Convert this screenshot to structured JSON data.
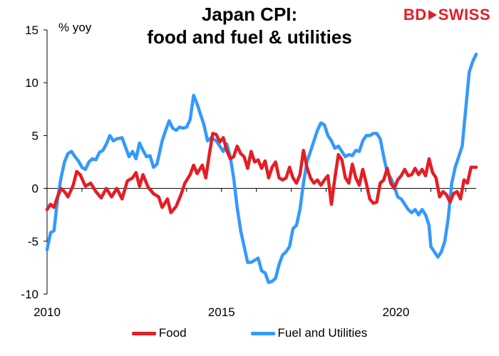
{
  "title_line1": "Japan CPI:",
  "title_line2": "food and fuel & utilities",
  "logo": {
    "bd": "BD",
    "swiss": "SWISS"
  },
  "colors": {
    "food": "#e31e24",
    "fuel": "#3399ff",
    "axis": "#000000"
  },
  "chart_data": {
    "type": "line",
    "title": "Japan CPI: food and fuel & utilities",
    "ylabel": "% yoy",
    "ylim": [
      -10,
      15
    ],
    "yticks": [
      -10,
      -5,
      0,
      5,
      10,
      15
    ],
    "xlim": [
      2010,
      2022.3
    ],
    "xticks": [
      2010,
      2015,
      2020
    ],
    "grid": false,
    "legend": "bottom",
    "series": [
      {
        "name": "Food",
        "color": "#e31e24",
        "points": [
          [
            2010.0,
            -2.0
          ],
          [
            2010.1,
            -1.5
          ],
          [
            2010.2,
            -1.8
          ],
          [
            2010.3,
            -0.8
          ],
          [
            2010.4,
            0.0
          ],
          [
            2010.5,
            -0.3
          ],
          [
            2010.6,
            -0.8
          ],
          [
            2010.75,
            0.3
          ],
          [
            2010.85,
            1.6
          ],
          [
            2010.95,
            1.3
          ],
          [
            2011.1,
            0.2
          ],
          [
            2011.25,
            0.5
          ],
          [
            2011.4,
            -0.3
          ],
          [
            2011.55,
            -0.9
          ],
          [
            2011.7,
            0.0
          ],
          [
            2011.85,
            -0.8
          ],
          [
            2012.0,
            0.0
          ],
          [
            2012.15,
            -1.0
          ],
          [
            2012.3,
            0.7
          ],
          [
            2012.45,
            1.0
          ],
          [
            2012.55,
            1.5
          ],
          [
            2012.65,
            0.2
          ],
          [
            2012.75,
            1.3
          ],
          [
            2012.9,
            0.1
          ],
          [
            2013.05,
            -0.5
          ],
          [
            2013.2,
            -0.8
          ],
          [
            2013.3,
            -1.8
          ],
          [
            2013.45,
            -1.0
          ],
          [
            2013.55,
            -2.3
          ],
          [
            2013.7,
            -1.7
          ],
          [
            2013.85,
            -0.5
          ],
          [
            2013.95,
            0.5
          ],
          [
            2014.1,
            1.3
          ],
          [
            2014.2,
            2.2
          ],
          [
            2014.3,
            1.4
          ],
          [
            2014.45,
            2.2
          ],
          [
            2014.55,
            1.0
          ],
          [
            2014.65,
            3.2
          ],
          [
            2014.75,
            5.2
          ],
          [
            2014.85,
            5.1
          ],
          [
            2014.95,
            4.4
          ],
          [
            2015.05,
            4.8
          ],
          [
            2015.15,
            3.6
          ],
          [
            2015.25,
            2.8
          ],
          [
            2015.35,
            3.0
          ],
          [
            2015.45,
            4.0
          ],
          [
            2015.55,
            3.3
          ],
          [
            2015.65,
            3.0
          ],
          [
            2015.75,
            1.9
          ],
          [
            2015.85,
            3.5
          ],
          [
            2015.95,
            2.5
          ],
          [
            2016.05,
            2.7
          ],
          [
            2016.15,
            1.9
          ],
          [
            2016.25,
            2.6
          ],
          [
            2016.35,
            1.0
          ],
          [
            2016.45,
            2.0
          ],
          [
            2016.55,
            2.5
          ],
          [
            2016.65,
            1.0
          ],
          [
            2016.75,
            0.8
          ],
          [
            2016.85,
            1.0
          ],
          [
            2016.95,
            2.0
          ],
          [
            2017.05,
            1.0
          ],
          [
            2017.15,
            0.5
          ],
          [
            2017.25,
            1.3
          ],
          [
            2017.35,
            3.6
          ],
          [
            2017.45,
            2.0
          ],
          [
            2017.55,
            1.0
          ],
          [
            2017.65,
            0.5
          ],
          [
            2017.75,
            0.8
          ],
          [
            2017.85,
            0.3
          ],
          [
            2017.95,
            0.8
          ],
          [
            2018.05,
            1.2
          ],
          [
            2018.15,
            -1.5
          ],
          [
            2018.25,
            1.0
          ],
          [
            2018.35,
            3.2
          ],
          [
            2018.45,
            2.7
          ],
          [
            2018.55,
            1.0
          ],
          [
            2018.65,
            0.5
          ],
          [
            2018.75,
            2.3
          ],
          [
            2018.85,
            1.0
          ],
          [
            2018.95,
            0.3
          ],
          [
            2019.05,
            1.8
          ],
          [
            2019.15,
            0.5
          ],
          [
            2019.25,
            -1.0
          ],
          [
            2019.35,
            -1.4
          ],
          [
            2019.45,
            -1.3
          ],
          [
            2019.55,
            0.5
          ],
          [
            2019.65,
            0.8
          ],
          [
            2019.75,
            1.9
          ],
          [
            2019.85,
            0.5
          ],
          [
            2019.95,
            0.0
          ],
          [
            2020.05,
            0.8
          ],
          [
            2020.15,
            1.2
          ],
          [
            2020.25,
            1.8
          ],
          [
            2020.35,
            1.2
          ],
          [
            2020.45,
            1.3
          ],
          [
            2020.55,
            1.9
          ],
          [
            2020.65,
            1.3
          ],
          [
            2020.75,
            1.8
          ],
          [
            2020.85,
            1.2
          ],
          [
            2020.95,
            2.8
          ],
          [
            2021.05,
            1.5
          ],
          [
            2021.15,
            1.0
          ],
          [
            2021.25,
            -0.8
          ],
          [
            2021.35,
            -0.3
          ],
          [
            2021.45,
            -0.6
          ],
          [
            2021.55,
            -1.3
          ],
          [
            2021.65,
            -0.5
          ],
          [
            2021.75,
            -0.3
          ],
          [
            2021.85,
            -1.0
          ],
          [
            2021.95,
            0.8
          ],
          [
            2022.05,
            0.5
          ],
          [
            2022.15,
            2.0
          ],
          [
            2022.3,
            2.0
          ]
        ]
      },
      {
        "name": "Fuel and Utilities",
        "color": "#3399ff",
        "points": [
          [
            2010.0,
            -5.8
          ],
          [
            2010.1,
            -4.2
          ],
          [
            2010.2,
            -4.0
          ],
          [
            2010.3,
            -1.0
          ],
          [
            2010.4,
            1.0
          ],
          [
            2010.5,
            2.5
          ],
          [
            2010.6,
            3.3
          ],
          [
            2010.7,
            3.5
          ],
          [
            2010.8,
            3.0
          ],
          [
            2010.9,
            2.6
          ],
          [
            2011.0,
            2.0
          ],
          [
            2011.1,
            1.8
          ],
          [
            2011.2,
            2.5
          ],
          [
            2011.3,
            2.8
          ],
          [
            2011.4,
            2.7
          ],
          [
            2011.5,
            3.4
          ],
          [
            2011.6,
            3.6
          ],
          [
            2011.7,
            4.2
          ],
          [
            2011.8,
            5.0
          ],
          [
            2011.9,
            4.5
          ],
          [
            2012.0,
            4.7
          ],
          [
            2012.15,
            4.8
          ],
          [
            2012.25,
            3.9
          ],
          [
            2012.35,
            3.0
          ],
          [
            2012.45,
            3.5
          ],
          [
            2012.55,
            2.8
          ],
          [
            2012.65,
            4.3
          ],
          [
            2012.75,
            3.6
          ],
          [
            2012.85,
            3.0
          ],
          [
            2012.95,
            3.1
          ],
          [
            2013.05,
            2.0
          ],
          [
            2013.15,
            2.3
          ],
          [
            2013.3,
            4.5
          ],
          [
            2013.4,
            5.5
          ],
          [
            2013.5,
            6.4
          ],
          [
            2013.6,
            5.7
          ],
          [
            2013.7,
            5.5
          ],
          [
            2013.8,
            5.8
          ],
          [
            2013.9,
            5.7
          ],
          [
            2014.0,
            5.8
          ],
          [
            2014.1,
            6.5
          ],
          [
            2014.2,
            8.8
          ],
          [
            2014.3,
            8.0
          ],
          [
            2014.4,
            7.0
          ],
          [
            2014.5,
            6.0
          ],
          [
            2014.6,
            4.5
          ],
          [
            2014.7,
            4.8
          ],
          [
            2014.85,
            4.5
          ],
          [
            2014.95,
            4.0
          ],
          [
            2015.05,
            3.5
          ],
          [
            2015.15,
            4.2
          ],
          [
            2015.25,
            3.0
          ],
          [
            2015.35,
            1.0
          ],
          [
            2015.45,
            -1.8
          ],
          [
            2015.55,
            -4.0
          ],
          [
            2015.65,
            -5.5
          ],
          [
            2015.75,
            -7.0
          ],
          [
            2015.85,
            -7.0
          ],
          [
            2015.95,
            -6.8
          ],
          [
            2016.05,
            -6.6
          ],
          [
            2016.15,
            -7.8
          ],
          [
            2016.25,
            -8.0
          ],
          [
            2016.35,
            -8.9
          ],
          [
            2016.45,
            -8.8
          ],
          [
            2016.55,
            -8.5
          ],
          [
            2016.65,
            -7.2
          ],
          [
            2016.75,
            -6.3
          ],
          [
            2016.85,
            -6.0
          ],
          [
            2016.95,
            -5.5
          ],
          [
            2017.05,
            -3.8
          ],
          [
            2017.15,
            -3.5
          ],
          [
            2017.25,
            -2.0
          ],
          [
            2017.35,
            0.5
          ],
          [
            2017.45,
            2.5
          ],
          [
            2017.55,
            3.5
          ],
          [
            2017.65,
            4.5
          ],
          [
            2017.75,
            5.5
          ],
          [
            2017.85,
            6.2
          ],
          [
            2017.95,
            6.0
          ],
          [
            2018.05,
            5.0
          ],
          [
            2018.15,
            4.5
          ],
          [
            2018.25,
            3.8
          ],
          [
            2018.35,
            4.0
          ],
          [
            2018.45,
            3.5
          ],
          [
            2018.55,
            3.0
          ],
          [
            2018.65,
            3.2
          ],
          [
            2018.75,
            3.1
          ],
          [
            2018.85,
            3.6
          ],
          [
            2018.95,
            3.5
          ],
          [
            2019.05,
            4.5
          ],
          [
            2019.15,
            5.0
          ],
          [
            2019.25,
            5.0
          ],
          [
            2019.35,
            5.2
          ],
          [
            2019.45,
            5.2
          ],
          [
            2019.55,
            4.7
          ],
          [
            2019.65,
            3.0
          ],
          [
            2019.75,
            1.5
          ],
          [
            2019.85,
            1.0
          ],
          [
            2019.95,
            0.2
          ],
          [
            2020.05,
            -0.8
          ],
          [
            2020.15,
            -1.0
          ],
          [
            2020.25,
            -1.5
          ],
          [
            2020.35,
            -2.0
          ],
          [
            2020.45,
            -2.3
          ],
          [
            2020.55,
            -2.0
          ],
          [
            2020.65,
            -2.5
          ],
          [
            2020.75,
            -2.0
          ],
          [
            2020.85,
            -2.5
          ],
          [
            2020.95,
            -3.5
          ],
          [
            2021.0,
            -5.5
          ],
          [
            2021.1,
            -6.0
          ],
          [
            2021.2,
            -6.5
          ],
          [
            2021.3,
            -6.0
          ],
          [
            2021.4,
            -5.0
          ],
          [
            2021.5,
            -2.8
          ],
          [
            2021.6,
            0.5
          ],
          [
            2021.7,
            2.0
          ],
          [
            2021.8,
            3.0
          ],
          [
            2021.9,
            4.0
          ],
          [
            2022.0,
            7.5
          ],
          [
            2022.1,
            11.0
          ],
          [
            2022.2,
            12.0
          ],
          [
            2022.3,
            12.7
          ]
        ]
      }
    ]
  }
}
